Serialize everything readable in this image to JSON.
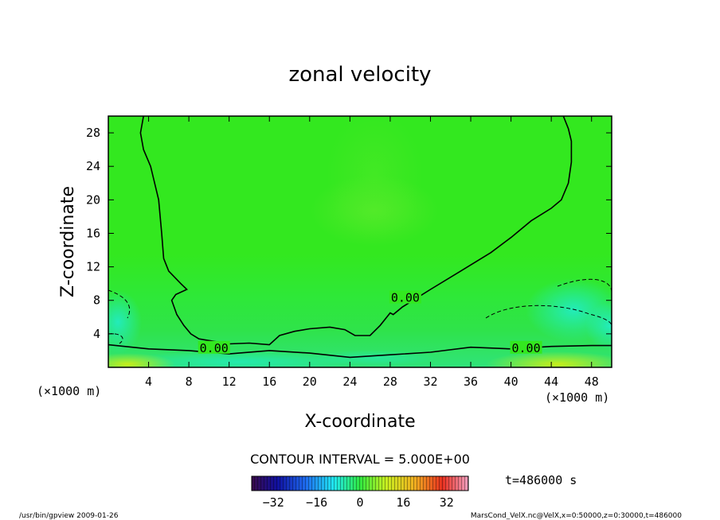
{
  "chart_data": {
    "type": "heatmap",
    "title": "zonal velocity",
    "xlabel": "X-coordinate",
    "ylabel": "Z-coordinate",
    "x_unit": "(×1000 m)",
    "y_unit": "(×1000 m)",
    "xlim": [
      0,
      50
    ],
    "ylim": [
      0,
      30
    ],
    "x_ticks": [
      4,
      8,
      12,
      16,
      20,
      24,
      28,
      32,
      36,
      40,
      44,
      48
    ],
    "y_ticks": [
      4,
      8,
      12,
      16,
      20,
      24,
      28
    ],
    "contour_labels": [
      {
        "text": "0.00",
        "x": 29.5,
        "y": 8.3
      },
      {
        "text": "0.00",
        "x": 10.5,
        "y": 2.3
      },
      {
        "text": "0.00",
        "x": 41.5,
        "y": 2.3
      }
    ],
    "zero_contour_main": [
      [
        3.5,
        30
      ],
      [
        3.2,
        28
      ],
      [
        3.5,
        26
      ],
      [
        4.2,
        24
      ],
      [
        5.0,
        20
      ],
      [
        5.3,
        16
      ],
      [
        5.5,
        13
      ],
      [
        6.0,
        11.5
      ],
      [
        7.2,
        10
      ],
      [
        7.8,
        9.3
      ],
      [
        6.7,
        8.7
      ],
      [
        6.3,
        8.0
      ],
      [
        6.8,
        6.3
      ],
      [
        7.5,
        5.0
      ],
      [
        8.2,
        4.0
      ],
      [
        9.0,
        3.4
      ],
      [
        10.5,
        3.1
      ],
      [
        12.0,
        2.8
      ],
      [
        14.0,
        2.9
      ],
      [
        16.0,
        2.7
      ],
      [
        17.0,
        3.8
      ],
      [
        18.5,
        4.3
      ],
      [
        20.0,
        4.6
      ],
      [
        22.0,
        4.8
      ],
      [
        23.5,
        4.5
      ],
      [
        24.5,
        3.8
      ],
      [
        26.0,
        3.8
      ],
      [
        27.0,
        5.0
      ],
      [
        28.0,
        6.5
      ],
      [
        28.3,
        6.3
      ],
      [
        29.2,
        7.2
      ],
      [
        32.0,
        9.3
      ],
      [
        35.0,
        11.5
      ],
      [
        38.0,
        13.7
      ],
      [
        40.0,
        15.5
      ],
      [
        42.0,
        17.5
      ],
      [
        44.0,
        19.0
      ],
      [
        45.0,
        20.0
      ],
      [
        45.7,
        22.0
      ],
      [
        46.0,
        24.5
      ],
      [
        46.0,
        27.0
      ],
      [
        45.7,
        28.5
      ],
      [
        45.2,
        30
      ]
    ],
    "zero_contour_lower": [
      [
        0,
        2.7
      ],
      [
        4.0,
        2.2
      ],
      [
        8.0,
        2.0
      ],
      [
        12.0,
        1.6
      ],
      [
        16.0,
        2.0
      ],
      [
        20.0,
        1.7
      ],
      [
        24.0,
        1.2
      ],
      [
        28.0,
        1.5
      ],
      [
        32.0,
        1.8
      ],
      [
        36.0,
        2.4
      ],
      [
        40.0,
        2.2
      ],
      [
        44.0,
        2.5
      ],
      [
        48.0,
        2.6
      ],
      [
        50.0,
        2.6
      ]
    ],
    "colorbar": {
      "range": [
        -40,
        40
      ],
      "ticks": [
        -32,
        -16,
        0,
        16,
        32
      ],
      "colormap": "rainbow"
    },
    "contour_interval": "CONTOUR INTERVAL = 5.000E+00",
    "time_label": "t=486000 s",
    "footer_left": "/usr/bin/gpview  2009-01-26",
    "footer_right": "MarsCond_VelX.nc@VelX,x=0:50000,z=0:30000,t=486000"
  }
}
